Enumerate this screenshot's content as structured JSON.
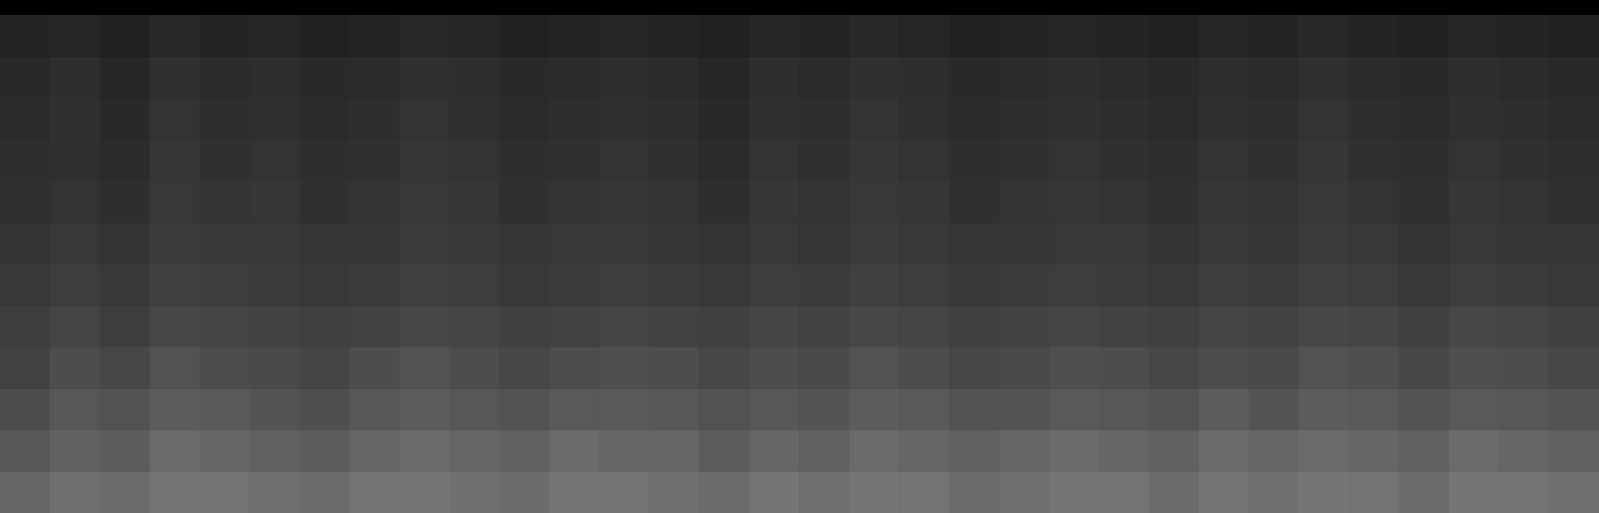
{
  "chart_data": {
    "type": "heatmap",
    "tick_labels": false,
    "grid": false,
    "zlim": [
      0,
      100
    ],
    "cells": [
      [
        14,
        15,
        13,
        16,
        14,
        15,
        13,
        14,
        16,
        15,
        13,
        14,
        15,
        14,
        13,
        15,
        14,
        16,
        15,
        13,
        14,
        15,
        14,
        13,
        15,
        14,
        16,
        14,
        13,
        15,
        14,
        13
      ],
      [
        16,
        18,
        15,
        19,
        17,
        18,
        16,
        17,
        19,
        18,
        16,
        17,
        18,
        17,
        15,
        18,
        17,
        19,
        18,
        16,
        17,
        18,
        17,
        16,
        18,
        17,
        19,
        17,
        16,
        18,
        17,
        16
      ],
      [
        17,
        19,
        16,
        20,
        18,
        19,
        17,
        18,
        20,
        19,
        17,
        18,
        19,
        18,
        16,
        19,
        18,
        20,
        19,
        17,
        18,
        19,
        18,
        17,
        19,
        18,
        20,
        18,
        17,
        19,
        18,
        17
      ],
      [
        18,
        19,
        17,
        21,
        19,
        20,
        18,
        19,
        21,
        20,
        18,
        19,
        20,
        19,
        17,
        20,
        19,
        21,
        20,
        18,
        19,
        20,
        19,
        18,
        20,
        19,
        21,
        19,
        18,
        20,
        19,
        18
      ],
      [
        19,
        20,
        18,
        22,
        20,
        21,
        19,
        20,
        22,
        21,
        19,
        20,
        21,
        20,
        18,
        21,
        20,
        22,
        21,
        19,
        20,
        21,
        20,
        19,
        21,
        20,
        22,
        20,
        19,
        21,
        20,
        19
      ],
      [
        20,
        22,
        20,
        23,
        22,
        22,
        21,
        21,
        23,
        22,
        21,
        22,
        22,
        21,
        20,
        22,
        21,
        23,
        22,
        21,
        21,
        22,
        22,
        20,
        22,
        21,
        23,
        22,
        20,
        22,
        21,
        21
      ],
      [
        22,
        24,
        22,
        25,
        24,
        23,
        22,
        23,
        25,
        24,
        22,
        23,
        24,
        23,
        22,
        24,
        23,
        25,
        24,
        22,
        23,
        24,
        23,
        22,
        24,
        23,
        25,
        24,
        22,
        24,
        23,
        22
      ],
      [
        24,
        27,
        24,
        28,
        27,
        26,
        25,
        26,
        28,
        27,
        25,
        26,
        27,
        26,
        25,
        27,
        26,
        28,
        27,
        25,
        26,
        27,
        26,
        25,
        27,
        26,
        28,
        27,
        25,
        28,
        27,
        25
      ],
      [
        26,
        30,
        28,
        32,
        30,
        29,
        27,
        30,
        32,
        30,
        28,
        30,
        31,
        30,
        28,
        30,
        29,
        32,
        30,
        28,
        29,
        31,
        30,
        28,
        30,
        29,
        32,
        31,
        28,
        31,
        30,
        28
      ],
      [
        30,
        34,
        32,
        36,
        35,
        33,
        31,
        34,
        36,
        34,
        32,
        35,
        35,
        34,
        32,
        34,
        33,
        36,
        35,
        32,
        33,
        35,
        34,
        32,
        36,
        33,
        36,
        35,
        32,
        35,
        34,
        32
      ],
      [
        34,
        38,
        36,
        42,
        40,
        38,
        36,
        40,
        42,
        40,
        38,
        42,
        40,
        40,
        36,
        40,
        38,
        42,
        40,
        38,
        40,
        42,
        40,
        38,
        42,
        40,
        42,
        40,
        38,
        42,
        40,
        38
      ],
      [
        40,
        44,
        42,
        46,
        45,
        44,
        42,
        46,
        46,
        44,
        42,
        46,
        45,
        44,
        42,
        46,
        44,
        46,
        45,
        42,
        44,
        46,
        45,
        42,
        46,
        44,
        46,
        45,
        42,
        46,
        45,
        44
      ]
    ]
  }
}
